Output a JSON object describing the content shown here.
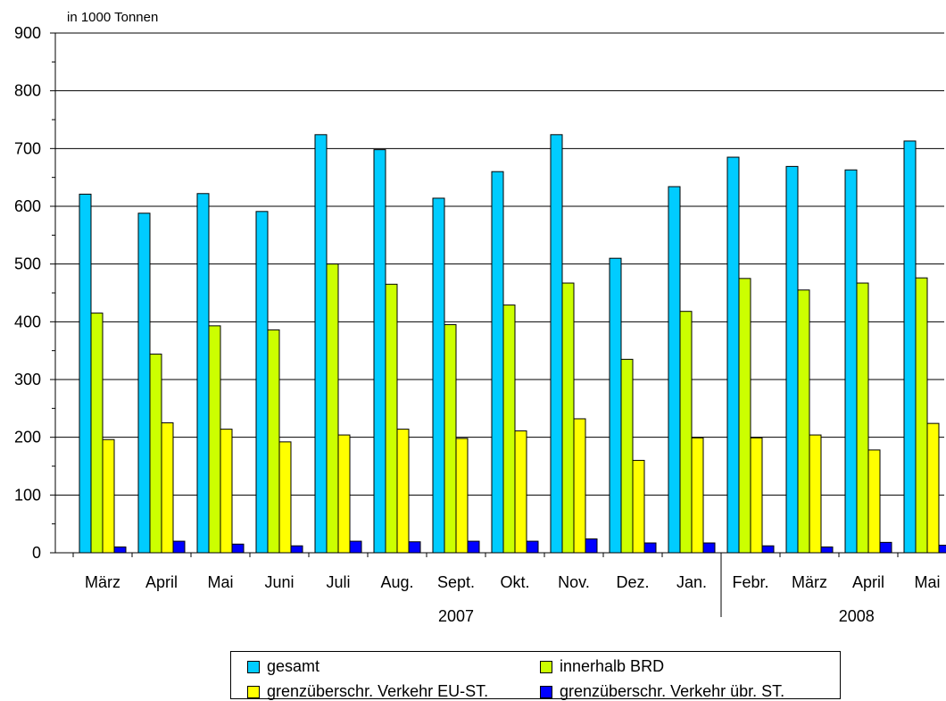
{
  "chart_data": {
    "type": "bar",
    "unit_label": "in 1000 Tonnen",
    "categories": [
      "März",
      "April",
      "Mai",
      "Juni",
      "Juli",
      "Aug.",
      "Sept.",
      "Okt.",
      "Nov.",
      "Dez.",
      "Jan.",
      "Febr.",
      "März",
      "April",
      "Mai"
    ],
    "year_labels": [
      "2007",
      "2008"
    ],
    "ylim": [
      0,
      900
    ],
    "yticks": [
      0,
      100,
      200,
      300,
      400,
      500,
      600,
      700,
      800,
      900
    ],
    "grid": true,
    "legend_position": "bottom",
    "series": [
      {
        "name": "gesamt",
        "color": "#00CCFF",
        "values": [
          621,
          588,
          622,
          591,
          724,
          698,
          614,
          660,
          724,
          510,
          634,
          685,
          669,
          663,
          713
        ]
      },
      {
        "name": "innerhalb BRD",
        "color": "#CCFF00",
        "values": [
          415,
          344,
          393,
          386,
          500,
          465,
          395,
          429,
          467,
          335,
          418,
          475,
          455,
          467,
          476
        ]
      },
      {
        "name": "grenzüberschr. Verkehr EU-ST.",
        "color": "#FFFF00",
        "values": [
          196,
          225,
          214,
          192,
          204,
          214,
          198,
          211,
          232,
          160,
          199,
          199,
          204,
          178,
          224
        ]
      },
      {
        "name": "grenzüberschr. Verkehr übr. ST.",
        "color": "#0000FF",
        "values": [
          10,
          20,
          15,
          12,
          20,
          19,
          20,
          20,
          24,
          17,
          17,
          12,
          10,
          18,
          13
        ]
      }
    ]
  }
}
